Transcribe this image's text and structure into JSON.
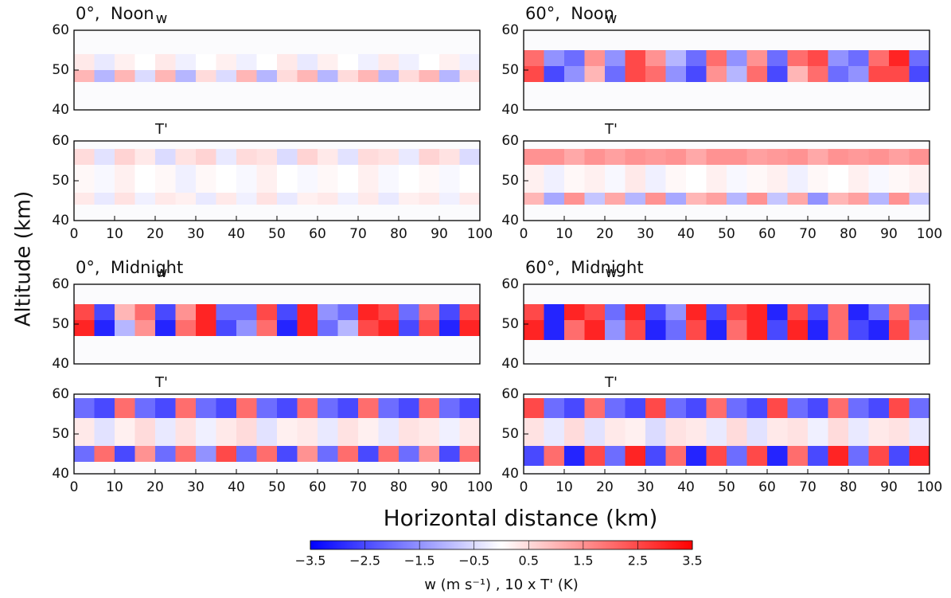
{
  "figure": {
    "ylabel": "Altitude (km)",
    "xlabel": "Horizontal distance (km)",
    "colorbar": {
      "lim": [
        -3.5,
        3.5
      ],
      "colors": [
        "#0000ff",
        "#ffffff",
        "#ff0000"
      ],
      "label": "w (m s⁻¹) , 10 x T' (K)",
      "ticks": [
        {
          "value": -3.5,
          "label": "−3.5"
        },
        {
          "value": -2.5,
          "label": "−2.5"
        },
        {
          "value": -1.5,
          "label": "−1.5"
        },
        {
          "value": -0.5,
          "label": "−0.5"
        },
        0.5,
        1.5,
        2.5,
        3.5
      ]
    }
  },
  "chart_data": [
    {
      "type": "heatmap",
      "panel_label": "0°,  Noon",
      "title": "w",
      "xlim": [
        0,
        100
      ],
      "ylim": [
        40,
        60
      ],
      "yticks": [
        40,
        50,
        60
      ],
      "xbins": [
        0,
        5,
        10,
        15,
        20,
        25,
        30,
        35,
        40,
        45,
        50,
        55,
        60,
        65,
        70,
        75,
        80,
        85,
        90,
        95,
        100
      ],
      "ybins": [
        47,
        50,
        54
      ],
      "z": [
        [
          1,
          -1,
          1,
          -0.5,
          1,
          -1,
          0.5,
          -0.5,
          1,
          -1,
          0.5,
          1,
          -1,
          0.5,
          1,
          -1,
          0.5,
          1,
          -1,
          0.5
        ],
        [
          0.3,
          -0.3,
          0.2,
          0,
          0.3,
          -0.2,
          0,
          0.2,
          -0.2,
          0,
          0.3,
          -0.3,
          0.2,
          0,
          -0.2,
          0.3,
          -0.2,
          0,
          0.2,
          -0.2
        ]
      ]
    },
    {
      "type": "heatmap",
      "title": "T'",
      "xlim": [
        0,
        100
      ],
      "ylim": [
        40,
        60
      ],
      "yticks": [
        40,
        50,
        60
      ],
      "xticks": [
        0,
        10,
        20,
        30,
        40,
        50,
        60,
        70,
        80,
        90,
        100
      ],
      "xbins": [
        0,
        5,
        10,
        15,
        20,
        25,
        30,
        35,
        40,
        45,
        50,
        55,
        60,
        65,
        70,
        75,
        80,
        85,
        90,
        95,
        100
      ],
      "ybins": [
        44,
        47,
        54,
        58
      ],
      "z": [
        [
          0.3,
          -0.3,
          0.4,
          -0.2,
          0.3,
          0.2,
          -0.3,
          0.3,
          -0.2,
          0.4,
          -0.3,
          0.2,
          0.3,
          -0.2,
          0.3,
          -0.3,
          0.2,
          0.3,
          -0.2,
          0.3
        ],
        [
          0.1,
          -0.1,
          0.2,
          0,
          0.1,
          -0.2,
          0.1,
          0,
          -0.1,
          0.2,
          0,
          -0.1,
          0.1,
          0,
          0.2,
          -0.1,
          0,
          0.1,
          -0.1,
          0
        ],
        [
          0.5,
          -0.4,
          0.6,
          0.3,
          -0.5,
          0.4,
          0.6,
          -0.3,
          0.5,
          0.4,
          -0.5,
          0.6,
          0.3,
          -0.4,
          0.5,
          0.4,
          -0.3,
          0.6,
          0.4,
          -0.5
        ]
      ]
    },
    {
      "type": "heatmap",
      "panel_label": "60°,  Noon",
      "title": "w",
      "xlim": [
        0,
        100
      ],
      "ylim": [
        40,
        60
      ],
      "yticks": [
        40,
        50,
        60
      ],
      "xbins": [
        0,
        5,
        10,
        15,
        20,
        25,
        30,
        35,
        40,
        45,
        50,
        55,
        60,
        65,
        70,
        75,
        80,
        85,
        90,
        95,
        100
      ],
      "ybins": [
        47,
        51,
        55
      ],
      "z": [
        [
          2.5,
          -2.5,
          -1.5,
          1,
          -2,
          2.5,
          2,
          -1.5,
          -2.5,
          1.5,
          -1,
          2,
          -2.5,
          1,
          2,
          -2,
          -1.5,
          2.5,
          2.5,
          -2.5
        ],
        [
          2,
          -1.5,
          -2,
          1.5,
          -1.5,
          2.5,
          1.5,
          -1,
          -2,
          2,
          -1.5,
          1.5,
          -2,
          2,
          2.5,
          -1.5,
          -2,
          2,
          3,
          -2
        ]
      ]
    },
    {
      "type": "heatmap",
      "title": "T'",
      "xlim": [
        0,
        100
      ],
      "ylim": [
        40,
        60
      ],
      "yticks": [
        40,
        50,
        60
      ],
      "xticks": [
        0,
        10,
        20,
        30,
        40,
        50,
        60,
        70,
        80,
        90,
        100
      ],
      "xbins": [
        0,
        5,
        10,
        15,
        20,
        25,
        30,
        35,
        40,
        45,
        50,
        55,
        60,
        65,
        70,
        75,
        80,
        85,
        90,
        95,
        100
      ],
      "ybins": [
        44,
        47,
        54,
        58
      ],
      "z": [
        [
          1,
          -1.2,
          1.5,
          -0.8,
          1.2,
          -1,
          1.5,
          -1.2,
          1,
          1.3,
          -1,
          1.5,
          -0.8,
          1.2,
          -1.5,
          1,
          1.3,
          -1,
          1.5,
          -0.8
        ],
        [
          0.2,
          -0.2,
          0.1,
          0.2,
          -0.1,
          0.3,
          -0.2,
          0.1,
          0,
          0.2,
          -0.1,
          0.1,
          0.2,
          -0.2,
          0.1,
          0,
          0.2,
          -0.1,
          0.1,
          0.2
        ],
        [
          1.5,
          1.5,
          1.2,
          1.5,
          1.3,
          1.5,
          1.4,
          1.5,
          1.2,
          1.5,
          1.5,
          1.3,
          1.4,
          1.5,
          1.2,
          1.5,
          1.4,
          1.5,
          1.3,
          1.5
        ]
      ]
    },
    {
      "type": "heatmap",
      "panel_label": "0°,  Midnight",
      "title": "w",
      "xlim": [
        0,
        100
      ],
      "ylim": [
        40,
        60
      ],
      "yticks": [
        40,
        50,
        60
      ],
      "xbins": [
        0,
        5,
        10,
        15,
        20,
        25,
        30,
        35,
        40,
        45,
        50,
        55,
        60,
        65,
        70,
        75,
        80,
        85,
        90,
        95,
        100
      ],
      "ybins": [
        47,
        51,
        55
      ],
      "z": [
        [
          3,
          -3,
          -1,
          1.5,
          -3,
          2,
          3,
          -2.5,
          -1.5,
          2,
          -3,
          3,
          -2,
          -1,
          2.5,
          3,
          -2.5,
          2.5,
          -3,
          3
        ],
        [
          2.5,
          -2.5,
          1,
          2,
          -2.5,
          1.5,
          3,
          -2,
          -2,
          2.5,
          -2.5,
          3,
          -1.5,
          -2,
          3,
          2.5,
          -2,
          2,
          -2.5,
          2.5
        ]
      ]
    },
    {
      "type": "heatmap",
      "title": "T'",
      "xlim": [
        0,
        100
      ],
      "ylim": [
        40,
        60
      ],
      "yticks": [
        40,
        50,
        60
      ],
      "xticks": [
        0,
        10,
        20,
        30,
        40,
        50,
        60,
        70,
        80,
        90,
        100
      ],
      "xbins": [
        0,
        5,
        10,
        15,
        20,
        25,
        30,
        35,
        40,
        45,
        50,
        55,
        60,
        65,
        70,
        75,
        80,
        85,
        90,
        95,
        100
      ],
      "ybins": [
        43,
        47,
        54,
        59
      ],
      "z": [
        [
          -2,
          2,
          -2.5,
          1.5,
          -2,
          2,
          -1.5,
          2.5,
          -2,
          2,
          -2.5,
          1.5,
          -2,
          2,
          -2.5,
          2,
          -2,
          1.5,
          -2.5,
          2
        ],
        [
          0.3,
          -0.4,
          0.2,
          0.5,
          -0.3,
          0.4,
          -0.2,
          0.3,
          0.5,
          -0.4,
          0.2,
          0.3,
          -0.3,
          0.4,
          0.2,
          -0.3,
          0.4,
          0.3,
          -0.2,
          0.3
        ],
        [
          -2,
          -2.5,
          2,
          -2,
          -2.5,
          2,
          -2,
          -2.5,
          2,
          -2,
          -2.5,
          2,
          -2,
          -2.5,
          2,
          -2,
          -2.5,
          2,
          -2,
          -2.5
        ]
      ]
    },
    {
      "type": "heatmap",
      "panel_label": "60°,  Midnight",
      "title": "w",
      "xlim": [
        0,
        100
      ],
      "ylim": [
        40,
        60
      ],
      "yticks": [
        40,
        50,
        60
      ],
      "xbins": [
        0,
        5,
        10,
        15,
        20,
        25,
        30,
        35,
        40,
        45,
        50,
        55,
        60,
        65,
        70,
        75,
        80,
        85,
        90,
        95,
        100
      ],
      "ybins": [
        46,
        51,
        55
      ],
      "z": [
        [
          3,
          -3,
          2,
          3,
          -1.5,
          2.5,
          -3,
          -2,
          2.5,
          -3,
          2,
          3,
          -2.5,
          3,
          -3,
          2,
          -2.5,
          -3,
          2.5,
          -1.5
        ],
        [
          2.5,
          -3,
          3,
          2.5,
          -2,
          3,
          -2.5,
          -1.5,
          3,
          -2.5,
          2.5,
          3,
          -3,
          2.5,
          -2.5,
          2,
          -3,
          -2,
          2,
          -2
        ]
      ]
    },
    {
      "type": "heatmap",
      "title": "T'",
      "xlim": [
        0,
        100
      ],
      "ylim": [
        40,
        60
      ],
      "yticks": [
        40,
        50,
        60
      ],
      "xticks": [
        0,
        10,
        20,
        30,
        40,
        50,
        60,
        70,
        80,
        90,
        100
      ],
      "xbins": [
        0,
        5,
        10,
        15,
        20,
        25,
        30,
        35,
        40,
        45,
        50,
        55,
        60,
        65,
        70,
        75,
        80,
        85,
        90,
        95,
        100
      ],
      "ybins": [
        42,
        47,
        54,
        59
      ],
      "z": [
        [
          -2.5,
          2,
          -3,
          2.5,
          -2,
          3,
          -2.5,
          2,
          -3,
          2.5,
          -2,
          2.5,
          -3,
          2,
          -2.5,
          3,
          -2,
          2.5,
          -2.5,
          3
        ],
        [
          0.4,
          -0.3,
          0.5,
          -0.4,
          0.3,
          0.2,
          -0.5,
          0.4,
          0.3,
          -0.3,
          0.5,
          -0.4,
          0.3,
          0.4,
          -0.2,
          0.5,
          -0.3,
          0.3,
          0.4,
          -0.3
        ],
        [
          2.5,
          -2,
          -2.5,
          2,
          -2,
          -2.5,
          2.5,
          -2,
          -2.5,
          2,
          -2,
          -2.5,
          2.5,
          -2,
          -2.5,
          2,
          -2,
          -2.5,
          2.5,
          -2
        ]
      ]
    }
  ]
}
